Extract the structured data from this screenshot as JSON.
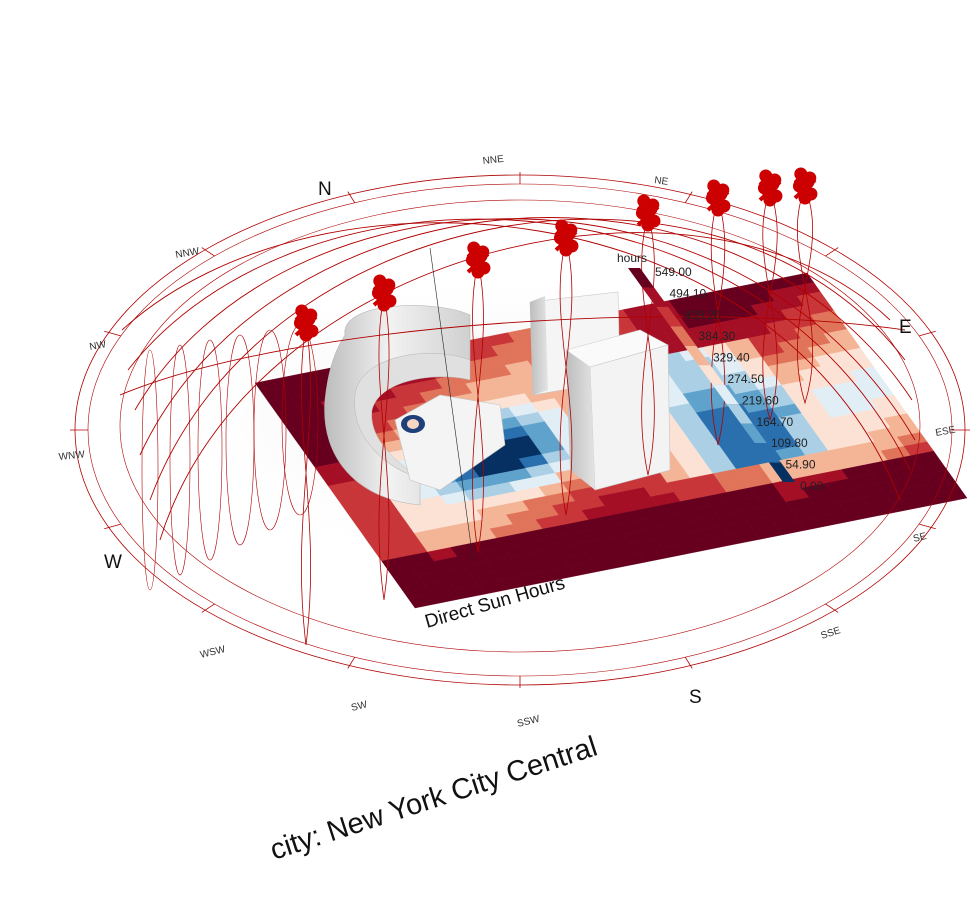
{
  "view": {
    "title": "city: New York City Central",
    "grid_title": "Direct Sun Hours",
    "colors": {
      "sunpath_line": "#b00000",
      "sun_marker": "#cc0000",
      "building_face": "#f2f2f2",
      "building_side": "#cfcfcf",
      "shadow": "#e6e6e6"
    }
  },
  "compass": {
    "main": [
      "N",
      "E",
      "S",
      "W"
    ],
    "minor": [
      "NNE",
      "NE",
      "ESE",
      "SE",
      "SSE",
      "SSW",
      "SW",
      "WSW",
      "WNW",
      "NW",
      "NNW"
    ]
  },
  "legend": {
    "unit": "hours",
    "values": [
      "549.00",
      "494.10",
      "439.20",
      "384.30",
      "329.40",
      "274.50",
      "219.60",
      "164.70",
      "109.80",
      "54.90",
      "0.00"
    ],
    "colors": [
      "#67001f",
      "#a50f26",
      "#c9363a",
      "#e0745a",
      "#f4b496",
      "#fbe2d4",
      "#e2eef5",
      "#abd0e6",
      "#5fa2cb",
      "#2a6fae",
      "#053061"
    ]
  }
}
